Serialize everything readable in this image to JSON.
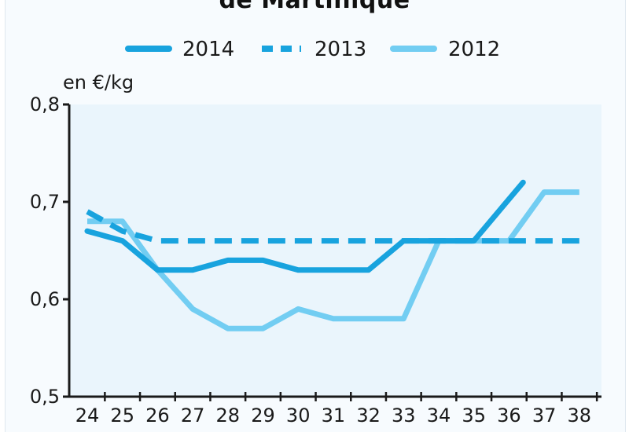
{
  "chart_data": {
    "type": "line",
    "title": "de Martinique",
    "ylabel": "en €/kg",
    "xlabel": "",
    "ylim": [
      0.5,
      0.8
    ],
    "yticks": [
      "0,8",
      "0,7",
      "0,6",
      "0,5"
    ],
    "yticks_values": [
      0.8,
      0.7,
      0.6,
      0.5
    ],
    "x": [
      "24",
      "25",
      "26",
      "27",
      "28",
      "29",
      "30",
      "31",
      "32",
      "33",
      "34",
      "35",
      "36",
      "37",
      "38"
    ],
    "legend_position": "top",
    "grid": false,
    "colors": {
      "plot_background": "#eaf5fc",
      "axis": "#1a1a1a",
      "series_2014": "#18a3de",
      "series_2013": "#18a3de",
      "series_2012": "#72cdf2"
    },
    "series": [
      {
        "name": "2014",
        "style": "solid",
        "x": [
          24,
          25,
          26,
          27,
          28,
          29,
          30,
          31,
          32,
          33,
          34,
          35,
          36.4
        ],
        "values": [
          0.67,
          0.66,
          0.63,
          0.63,
          0.64,
          0.64,
          0.63,
          0.63,
          0.63,
          0.66,
          0.66,
          0.66,
          0.72
        ]
      },
      {
        "name": "2013",
        "style": "dashed",
        "x": [
          24,
          25,
          26,
          27,
          28,
          29,
          30,
          31,
          32,
          33,
          34,
          35,
          36,
          37,
          38
        ],
        "values": [
          0.69,
          0.67,
          0.66,
          0.66,
          0.66,
          0.66,
          0.66,
          0.66,
          0.66,
          0.66,
          0.66,
          0.66,
          0.66,
          0.66,
          0.66
        ]
      },
      {
        "name": "2012",
        "style": "solid-light",
        "x": [
          24,
          25,
          26,
          27,
          28,
          29,
          30,
          31,
          32,
          33,
          34,
          35,
          36,
          37,
          38
        ],
        "values": [
          0.68,
          0.68,
          0.63,
          0.59,
          0.57,
          0.57,
          0.59,
          0.58,
          0.58,
          0.58,
          0.66,
          0.66,
          0.66,
          0.71,
          0.71
        ]
      }
    ]
  }
}
